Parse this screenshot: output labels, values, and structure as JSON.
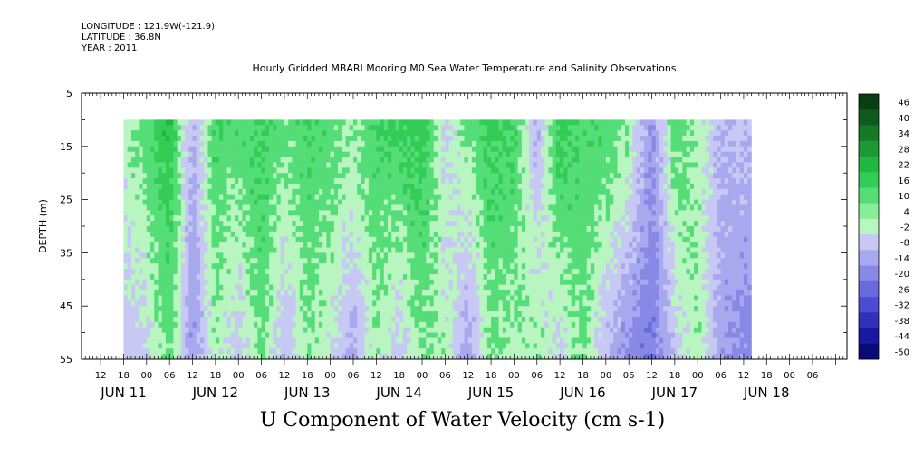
{
  "header": {
    "longitude": "LONGITUDE : 121.9W(-121.9)",
    "latitude": "LATITUDE : 36.8N",
    "year": "YEAR : 2011",
    "title": "Hourly Gridded MBARI Mooring M0 Sea Water Temperature and Salinity Observations"
  },
  "chart_data": {
    "type": "heatmap",
    "title": "Hourly Gridded MBARI Mooring M0 Sea Water Temperature and Salinity Observations",
    "xlabel": "U Component of Water Velocity (cm s-1)",
    "ylabel": "DEPTH (m)",
    "xlim_hours": [
      -17,
      183
    ],
    "ylim": [
      55,
      5
    ],
    "data_depth_range": [
      10,
      55
    ],
    "data_time_range_hours": [
      -6,
      158
    ],
    "y_ticks": [
      5,
      15,
      25,
      35,
      45,
      55
    ],
    "x_hour_labels": [
      "12",
      "18",
      "00",
      "06",
      "12",
      "18",
      "00",
      "06",
      "12",
      "18",
      "00",
      "06",
      "12",
      "18",
      "00",
      "06",
      "12",
      "18",
      "00",
      "06",
      "12",
      "18",
      "00",
      "06",
      "12",
      "18",
      "00",
      "06",
      "12",
      "18",
      "00",
      "06"
    ],
    "x_date_labels": [
      "JUN 11",
      "JUN 12",
      "JUN 13",
      "JUN 14",
      "JUN 15",
      "JUN 16",
      "JUN 17",
      "JUN 18"
    ],
    "colorbar": {
      "labels": [
        "46",
        "40",
        "34",
        "28",
        "22",
        "16",
        "10",
        "4",
        "-2",
        "-8",
        "-14",
        "-20",
        "-26",
        "-32",
        "-38",
        "-44",
        "-50"
      ],
      "colors": [
        "#0a3d12",
        "#0f5a1e",
        "#147a28",
        "#1b9a34",
        "#22b840",
        "#33cc55",
        "#55dd77",
        "#88ee99",
        "#b8f5c0",
        "#c8c8f5",
        "#a8a8ee",
        "#8888e6",
        "#6a6ade",
        "#4c4cd2",
        "#3030bb",
        "#1818a0",
        "#0a0a78"
      ]
    },
    "column_profile_note": "velocity by time (hours from JUN 11 00) and depth",
    "columns": [
      {
        "t": -6,
        "top": 2,
        "bottom": -6
      },
      {
        "t": 0,
        "top": 8,
        "bottom": -4
      },
      {
        "t": 6,
        "top": 16,
        "bottom": 6
      },
      {
        "t": 12,
        "top": -10,
        "bottom": -14
      },
      {
        "t": 18,
        "top": 10,
        "bottom": 2
      },
      {
        "t": 24,
        "top": 8,
        "bottom": -6
      },
      {
        "t": 30,
        "top": 12,
        "bottom": 6
      },
      {
        "t": 36,
        "top": 6,
        "bottom": -8
      },
      {
        "t": 42,
        "top": 10,
        "bottom": 4
      },
      {
        "t": 48,
        "top": 8,
        "bottom": -2
      },
      {
        "t": 54,
        "top": 4,
        "bottom": -10
      },
      {
        "t": 60,
        "top": 10,
        "bottom": 2
      },
      {
        "t": 66,
        "top": 12,
        "bottom": -6
      },
      {
        "t": 72,
        "top": 14,
        "bottom": 4
      },
      {
        "t": 78,
        "top": -4,
        "bottom": 2
      },
      {
        "t": 84,
        "top": 6,
        "bottom": -12
      },
      {
        "t": 90,
        "top": 12,
        "bottom": 4
      },
      {
        "t": 96,
        "top": 10,
        "bottom": 2
      },
      {
        "t": 102,
        "top": -10,
        "bottom": 4
      },
      {
        "t": 108,
        "top": 14,
        "bottom": -4
      },
      {
        "t": 114,
        "top": 8,
        "bottom": 6
      },
      {
        "t": 120,
        "top": 10,
        "bottom": -8
      },
      {
        "t": 126,
        "top": 4,
        "bottom": -16
      },
      {
        "t": 132,
        "top": -14,
        "bottom": -20
      },
      {
        "t": 138,
        "top": 8,
        "bottom": -6
      },
      {
        "t": 144,
        "top": 2,
        "bottom": 4
      },
      {
        "t": 150,
        "top": -8,
        "bottom": -12
      },
      {
        "t": 158,
        "top": -6,
        "bottom": -18
      }
    ]
  }
}
